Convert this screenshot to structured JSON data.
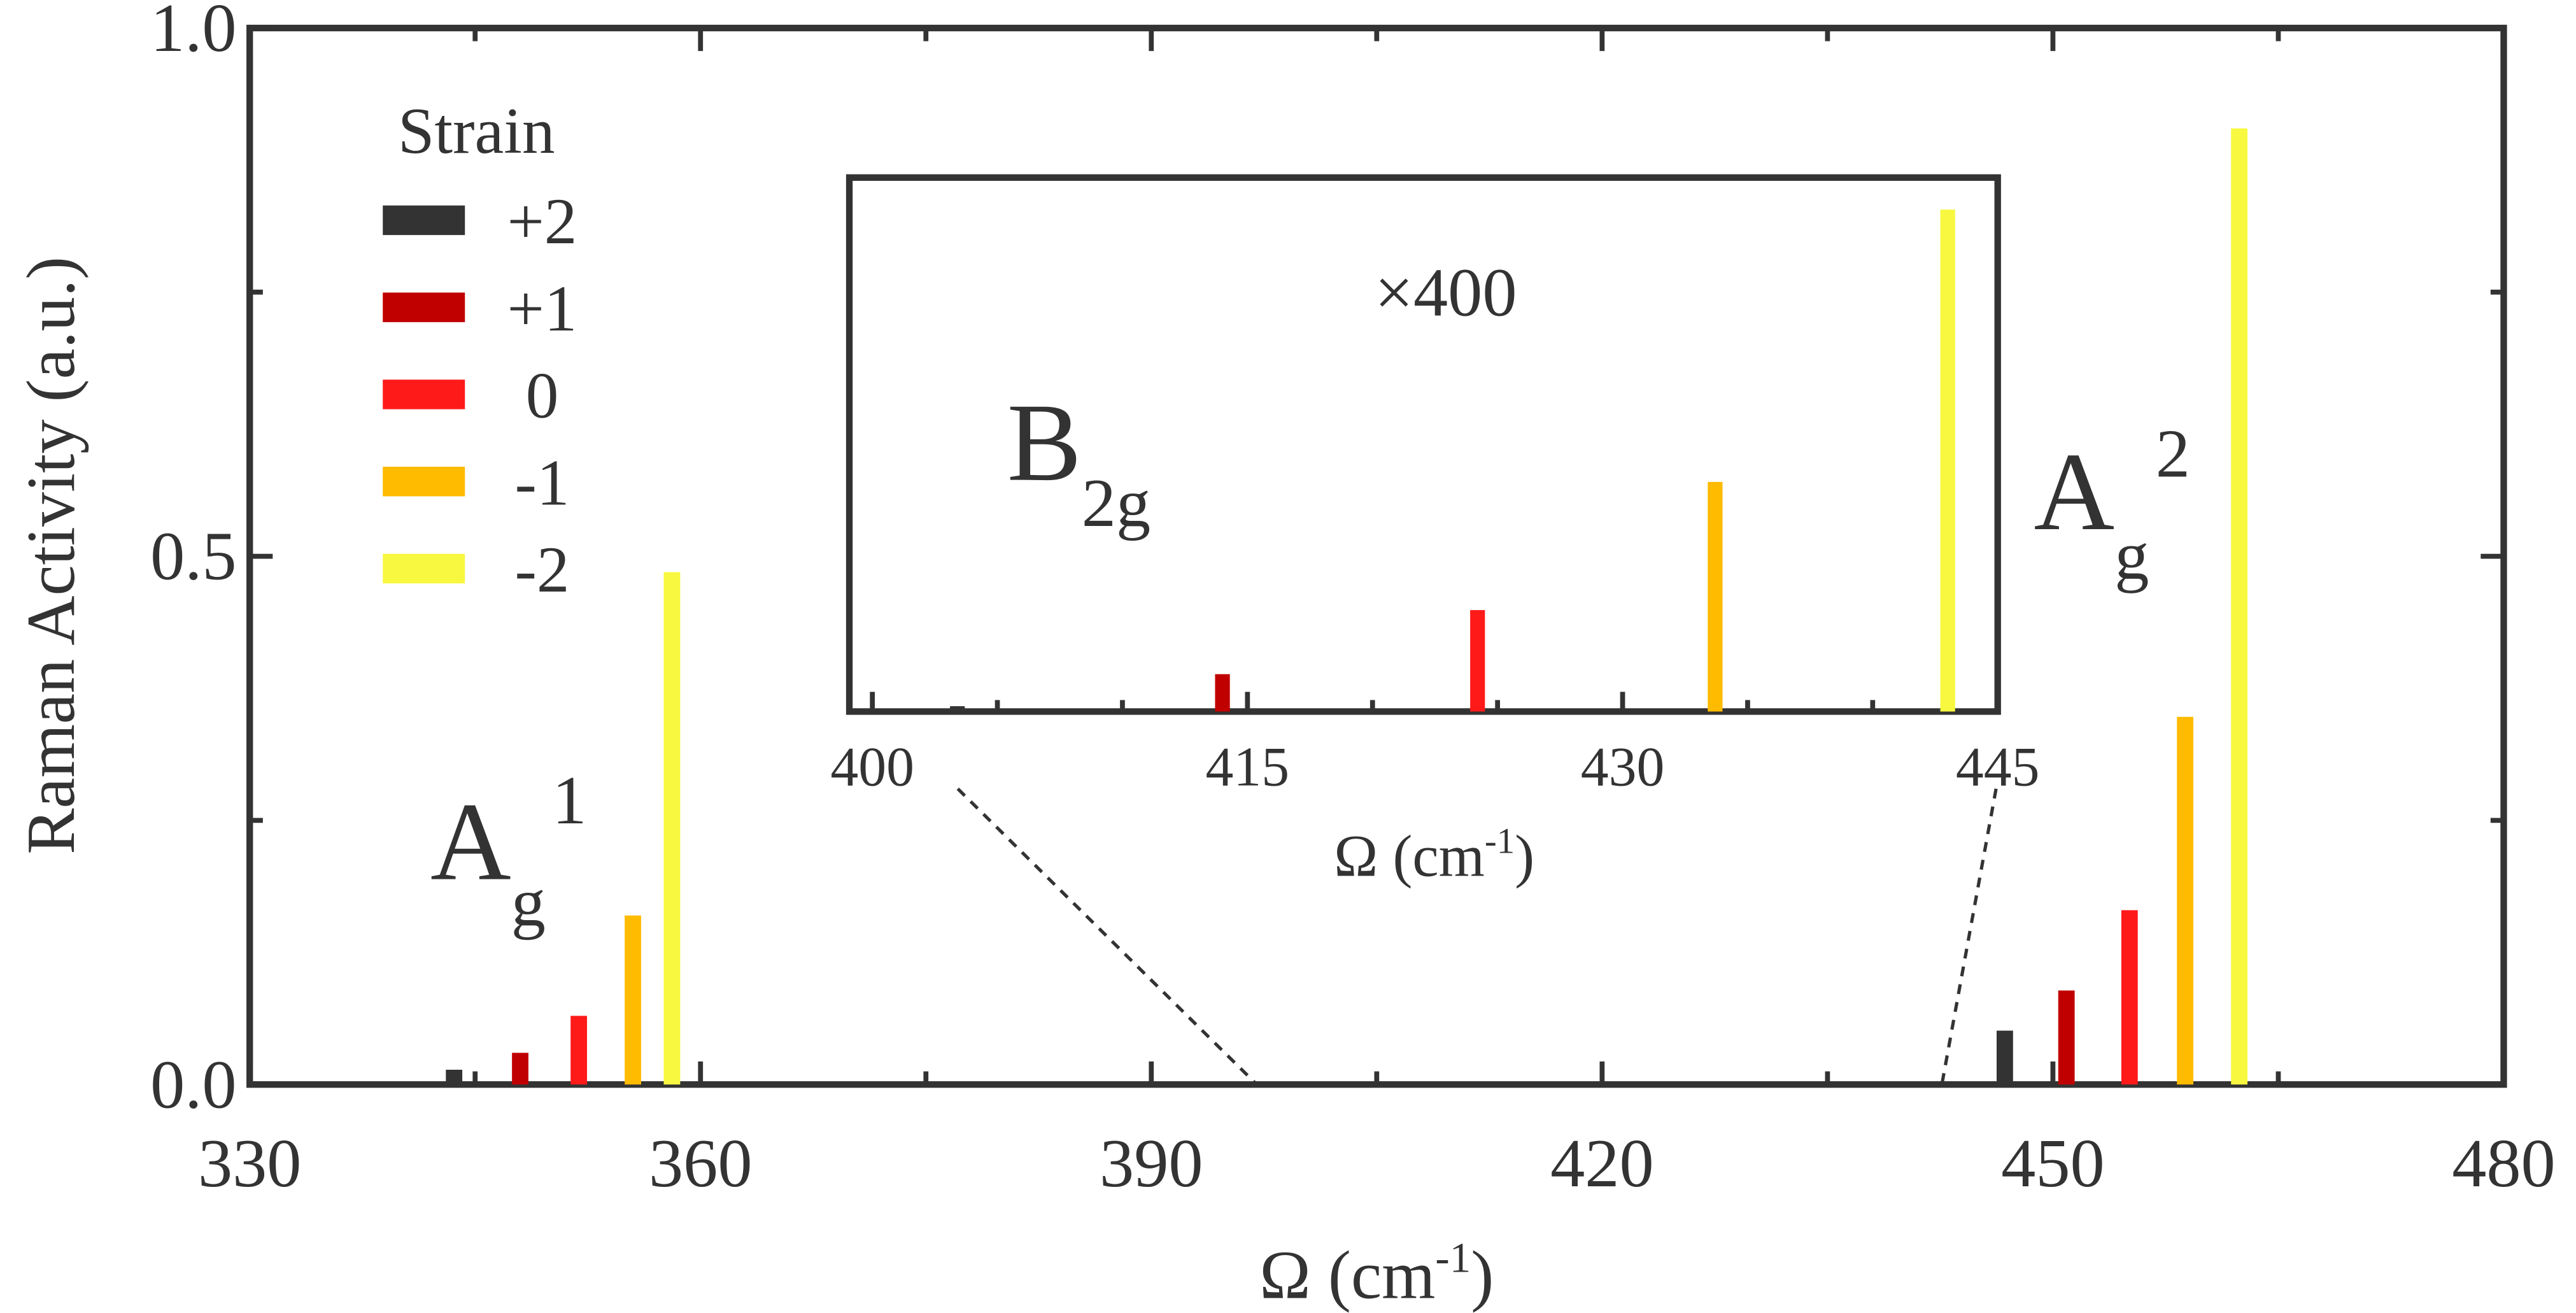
{
  "chart_data": [
    {
      "type": "bar",
      "xlabel": {
        "text": "Ω (cm",
        "sup": "-1",
        "tail": ")"
      },
      "ylabel": "Raman Activity (a.u.)",
      "xlim": [
        330,
        480
      ],
      "xticks": [
        330,
        360,
        390,
        420,
        450,
        480
      ],
      "xminor": [
        345,
        375,
        405,
        435,
        465
      ],
      "ylim": [
        0,
        1.0
      ],
      "yticks": [
        {
          "value": 0,
          "label": "0.0"
        },
        {
          "value": 0.5,
          "label": "0.5"
        },
        {
          "value": 1.0,
          "label": "1.0"
        }
      ],
      "yminor": [
        0.25,
        0.75
      ],
      "legend": {
        "title": "Strain",
        "position": "upper left"
      },
      "annotations": [
        {
          "text": "A",
          "sub": "g",
          "sup": "1"
        },
        {
          "text": "A",
          "sub": "g",
          "sup": "2"
        }
      ],
      "series": [
        {
          "name": "+2",
          "color": "#333333",
          "x": [
            343.6,
            446.8
          ],
          "values": [
            0.014,
            0.051
          ]
        },
        {
          "name": "+1",
          "color": "#c00000",
          "x": [
            348.0,
            450.9
          ],
          "values": [
            0.03,
            0.089
          ]
        },
        {
          "name": "0",
          "color": "#ff1a1a",
          "x": [
            351.9,
            455.1
          ],
          "values": [
            0.065,
            0.165
          ]
        },
        {
          "name": "-1",
          "color": "#ffbb00",
          "x": [
            355.5,
            458.8
          ],
          "values": [
            0.16,
            0.348
          ]
        },
        {
          "name": "-2",
          "color": "#f8f840",
          "x": [
            358.1,
            462.4
          ],
          "values": [
            0.485,
            0.905
          ]
        }
      ]
    },
    {
      "type": "bar",
      "xlabel": {
        "text": "Ω (cm",
        "sup": "-1",
        "tail": ")"
      },
      "xlim": [
        400,
        445
      ],
      "xticks": [
        400,
        415,
        430,
        445
      ],
      "xminor": [
        405,
        410,
        420,
        425,
        435,
        440
      ],
      "ylim": [
        0,
        1
      ],
      "annotations": [
        {
          "text": "×400"
        },
        {
          "text": "B",
          "sub": "2g"
        }
      ],
      "series": [
        {
          "name": "+2",
          "color": "#333333",
          "x": [
            403.4
          ],
          "values": [
            0.01
          ]
        },
        {
          "name": "+1",
          "color": "#c00000",
          "x": [
            414.0
          ],
          "values": [
            0.07
          ]
        },
        {
          "name": "0",
          "color": "#ff1a1a",
          "x": [
            424.2
          ],
          "values": [
            0.19
          ]
        },
        {
          "name": "-1",
          "color": "#ffbb00",
          "x": [
            433.7
          ],
          "values": [
            0.43
          ]
        },
        {
          "name": "-2",
          "color": "#f8f840",
          "x": [
            443.0
          ],
          "values": [
            0.94
          ]
        }
      ]
    }
  ]
}
